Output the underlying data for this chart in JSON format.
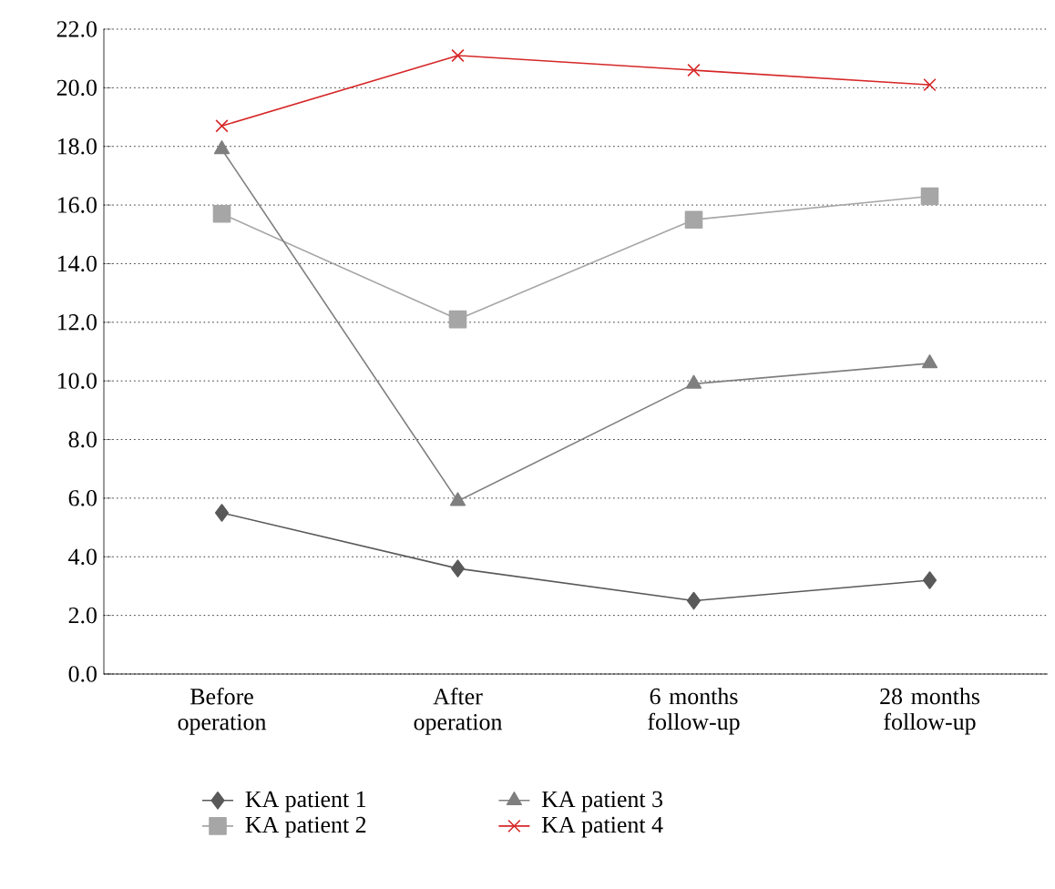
{
  "chart_data": {
    "type": "line",
    "categories": [
      "Before operation",
      "After operation",
      "6 months follow-up",
      "28 months follow-up"
    ],
    "series": [
      {
        "name": "KA patient 1",
        "color": "#595959",
        "marker": "diamond",
        "values": [
          5.5,
          3.6,
          2.5,
          3.2
        ]
      },
      {
        "name": "KA patient 2",
        "color": "#a6a6a6",
        "marker": "square",
        "values": [
          15.7,
          12.1,
          15.5,
          16.3
        ]
      },
      {
        "name": "KA patient 3",
        "color": "#7f7f7f",
        "marker": "triangle",
        "values": [
          17.9,
          5.9,
          9.9,
          10.6
        ]
      },
      {
        "name": "KA patient 4",
        "color": "#d62728",
        "marker": "cross",
        "values": [
          18.7,
          21.1,
          20.6,
          20.1
        ]
      }
    ],
    "ylim": [
      0,
      22
    ],
    "yticks": [
      {
        "value": 0,
        "label": "0.0"
      },
      {
        "value": 2,
        "label": "2.0"
      },
      {
        "value": 4,
        "label": "4.0"
      },
      {
        "value": 6,
        "label": "6.0"
      },
      {
        "value": 8,
        "label": "8.0"
      },
      {
        "value": 10,
        "label": "10.0"
      },
      {
        "value": 12,
        "label": "12.0"
      },
      {
        "value": 14,
        "label": "14.0"
      },
      {
        "value": 16,
        "label": "16.0"
      },
      {
        "value": 18,
        "label": "18.0"
      },
      {
        "value": 20,
        "label": "20.0"
      },
      {
        "value": 22,
        "label": "22.0"
      }
    ],
    "grid": "y",
    "legend": "bottom",
    "line_style": "solid"
  }
}
